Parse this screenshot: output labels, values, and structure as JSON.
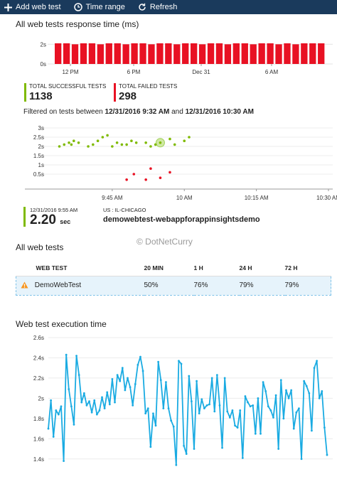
{
  "toolbar": {
    "add_label": "Add web test",
    "time_label": "Time range",
    "refresh_label": "Refresh"
  },
  "response_chart": {
    "title": "All web tests response time (ms)"
  },
  "metrics": {
    "success_label": "TOTAL SUCCESSFUL TESTS",
    "success_value": "1138",
    "success_color": "#7fba00",
    "failed_label": "TOTAL FAILED TESTS",
    "failed_value": "298",
    "failed_color": "#e81123"
  },
  "filter": {
    "prefix": "Filtered on tests between",
    "start": "12/31/2016 9:32 AM",
    "and": "and",
    "end": "12/31/2016 10:30 AM"
  },
  "selection": {
    "date": "12/31/2016 9:55 AM",
    "value": "2.20",
    "unit": "sec",
    "location": "US : IL-CHICAGO",
    "test_name": "demowebtest-webappforappinsightsdemo"
  },
  "watermark": "© DotNetCurry",
  "tests_table": {
    "title": "All web tests",
    "headers": [
      "WEB TEST",
      "20 MIN",
      "1 H",
      "24 H",
      "72 H"
    ],
    "row": {
      "name": "DemoWebTest",
      "min20": "50%",
      "h1": "76%",
      "h24": "79%",
      "h72": "79%"
    }
  },
  "exec_chart": {
    "title": "Web test execution time"
  },
  "chart_data": [
    {
      "type": "bar",
      "title": "All web tests response time (ms)",
      "y_ticks": [
        "2s",
        "0s"
      ],
      "ylim": [
        0,
        2.6
      ],
      "x_ticks": [
        "12 PM",
        "6 PM",
        "Dec 31",
        "6 AM"
      ],
      "color": "#e81123",
      "values": [
        2.1,
        2.1,
        2.0,
        2.1,
        2.1,
        2.0,
        2.1,
        2.1,
        2.0,
        2.1,
        2.1,
        2.0,
        2.1,
        2.1,
        2.0,
        2.1,
        2.1,
        2.0,
        2.1,
        2.1,
        2.0,
        2.1,
        2.1,
        2.0,
        2.1,
        2.1,
        2.0,
        2.1,
        2.0,
        2.1,
        2.1,
        2.1
      ]
    },
    {
      "type": "scatter",
      "y_ticks": [
        "3s",
        "2.5s",
        "2s",
        "1.5s",
        "1s",
        "0.5s"
      ],
      "ylim": [
        0,
        3
      ],
      "x_ticks": [
        "9:45 AM",
        "10 AM",
        "10:15 AM",
        "10:30 AM"
      ],
      "x_range_minutes": [
        32,
        90
      ],
      "series": [
        {
          "color": "#7fba00",
          "points": [
            [
              34,
              2.0
            ],
            [
              35,
              2.1
            ],
            [
              36,
              2.2
            ],
            [
              36.5,
              2.1
            ],
            [
              37,
              2.3
            ],
            [
              38,
              2.2
            ],
            [
              40,
              2.0
            ],
            [
              41,
              2.1
            ],
            [
              42,
              2.3
            ],
            [
              43,
              2.5
            ],
            [
              44,
              2.6
            ],
            [
              45,
              2.0
            ],
            [
              46,
              2.2
            ],
            [
              47,
              2.1
            ],
            [
              48,
              2.1
            ],
            [
              49,
              2.3
            ],
            [
              50,
              2.2
            ],
            [
              52,
              2.2
            ],
            [
              53,
              2.0
            ],
            [
              54,
              2.1
            ],
            [
              55,
              2.2
            ],
            [
              57,
              2.4
            ],
            [
              58,
              2.1
            ],
            [
              60,
              2.3
            ],
            [
              61,
              2.5
            ]
          ]
        },
        {
          "color": "#e81123",
          "points": [
            [
              48,
              0.2
            ],
            [
              49.5,
              0.5
            ],
            [
              52,
              0.2
            ],
            [
              53,
              0.8
            ],
            [
              55,
              0.3
            ],
            [
              57,
              0.6
            ]
          ]
        }
      ],
      "selected": [
        55,
        2.2
      ]
    },
    {
      "type": "line",
      "title": "Web test execution time",
      "y_ticks": [
        "2.6s",
        "2.4s",
        "2.2s",
        "2s",
        "1.8s",
        "1.6s",
        "1.4s"
      ],
      "ylim": [
        1.3,
        2.6
      ],
      "color": "#1aabe2",
      "values": [
        1.7,
        1.98,
        1.62,
        1.88,
        1.84,
        1.92,
        1.38,
        2.43,
        2.09,
        1.92,
        1.74,
        2.42,
        2.23,
        1.96,
        2.05,
        1.93,
        1.97,
        1.86,
        1.98,
        1.84,
        1.88,
        2.01,
        1.9,
        2.06,
        1.94,
        2.19,
        1.96,
        2.23,
        2.17,
        2.3,
        2.08,
        2.2,
        2.11,
        1.93,
        2.14,
        2.33,
        2.41,
        2.27,
        1.85,
        1.9,
        1.52,
        1.85,
        1.73,
        2.36,
        2.18,
        1.9,
        2.16,
        1.9,
        1.78,
        1.72,
        1.34,
        2.37,
        2.34,
        1.53,
        1.45,
        2.22,
        1.97,
        1.5,
        2.17,
        1.85,
        1.99,
        1.9,
        1.93,
        1.94,
        2.2,
        1.87,
        2.23,
        1.93,
        1.51,
        2.2,
        1.87,
        1.81,
        1.88,
        1.73,
        1.71,
        1.88,
        1.41,
        2.02,
        1.96,
        1.92,
        1.93,
        1.65,
        2.0,
        1.65,
        2.16,
        2.07,
        1.92,
        1.88,
        1.81,
        2.03,
        1.5,
        2.18,
        1.8,
        2.08,
        2.0,
        2.08,
        1.7,
        1.86,
        1.9,
        1.4,
        2.17,
        2.12,
        2.05,
        1.68,
        2.3,
        2.37,
        2.0,
        2.07,
        1.71,
        1.44
      ]
    }
  ]
}
